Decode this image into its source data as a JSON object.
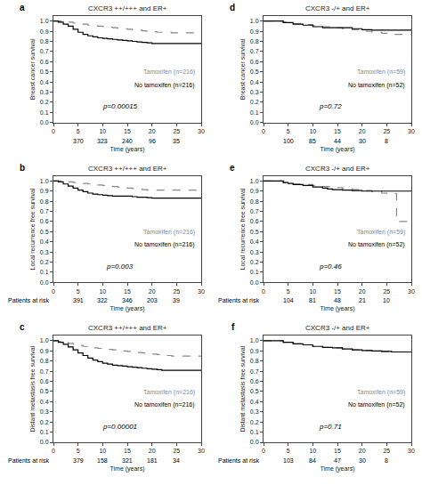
{
  "chart_data": [
    {
      "type": "step",
      "panel_label": "a",
      "title": "CXCR3 ++/+++ and ER+",
      "xlabel": "Time (years)",
      "ylabel": "Breast cancer survival",
      "annotations": [
        "p=0.00015"
      ],
      "series": [
        {
          "name": "Tamoxifen (n=216)",
          "color": "#888888",
          "line_style": "dashed",
          "x": [
            0,
            1,
            2,
            3,
            4,
            5,
            6,
            7,
            8,
            9,
            10,
            11,
            12,
            13,
            14,
            15,
            16,
            17,
            18,
            19,
            20,
            21,
            22,
            23,
            24,
            25,
            27,
            30
          ],
          "values": [
            1.0,
            1.0,
            0.99,
            0.99,
            0.98,
            0.97,
            0.97,
            0.96,
            0.955,
            0.95,
            0.945,
            0.94,
            0.935,
            0.93,
            0.925,
            0.92,
            0.915,
            0.91,
            0.905,
            0.9,
            0.895,
            0.89,
            0.89,
            0.89,
            0.885,
            0.885,
            0.885,
            0.885
          ]
        },
        {
          "name": "No tamoxifen (n=216)",
          "color": "#000000",
          "line_style": "solid",
          "x": [
            0,
            1,
            2,
            3,
            4,
            5,
            6,
            7,
            8,
            9,
            10,
            11,
            12,
            13,
            14,
            15,
            16,
            17,
            18,
            19,
            20,
            21,
            22,
            23,
            24,
            25,
            27,
            30
          ],
          "values": [
            1.0,
            0.99,
            0.97,
            0.95,
            0.92,
            0.89,
            0.87,
            0.855,
            0.845,
            0.835,
            0.83,
            0.825,
            0.82,
            0.815,
            0.81,
            0.805,
            0.8,
            0.795,
            0.79,
            0.785,
            0.78,
            0.78,
            0.78,
            0.78,
            0.78,
            0.78,
            0.78,
            0.78
          ]
        }
      ],
      "at_risk": {
        "x": [
          5,
          10,
          15,
          20,
          25
        ],
        "values": [
          370,
          323,
          240,
          96,
          35
        ]
      },
      "xlim": [
        0,
        30
      ],
      "xticks": [
        0,
        5,
        10,
        15,
        20,
        25,
        30
      ],
      "ylim": [
        0.0,
        1.05
      ],
      "yticks": [
        {
          "value": 0.0,
          "label": "0.0"
        },
        0.1,
        0.2,
        0.3,
        0.4,
        0.5,
        0.6,
        0.7,
        0.8,
        0.9,
        {
          "value": 1.0,
          "label": "1.0"
        }
      ],
      "grid": false
    },
    {
      "type": "step",
      "panel_label": "b",
      "title": "CXCR3 ++/+++ and ER+",
      "xlabel": "Time (years)",
      "ylabel": "Local recurrence free survival",
      "annotations": [
        "p=0.003"
      ],
      "series": [
        {
          "name": "Tamoxifen (n=216)",
          "color": "#888888",
          "line_style": "dashed",
          "x": [
            0,
            1,
            2,
            3,
            4,
            5,
            6,
            7,
            8,
            9,
            10,
            11,
            12,
            13,
            14,
            15,
            16,
            17,
            18,
            19,
            20,
            21,
            22,
            23,
            24,
            25,
            27,
            30
          ],
          "values": [
            1.0,
            1.0,
            0.995,
            0.99,
            0.985,
            0.98,
            0.975,
            0.97,
            0.965,
            0.96,
            0.955,
            0.95,
            0.945,
            0.94,
            0.935,
            0.93,
            0.925,
            0.92,
            0.915,
            0.91,
            0.91,
            0.91,
            0.91,
            0.91,
            0.91,
            0.91,
            0.91,
            0.91
          ]
        },
        {
          "name": "No tamoxifen (n=216)",
          "color": "#000000",
          "line_style": "solid",
          "x": [
            0,
            1,
            2,
            3,
            4,
            5,
            6,
            7,
            8,
            9,
            10,
            11,
            12,
            13,
            14,
            15,
            16,
            17,
            18,
            19,
            20,
            21,
            22,
            23,
            24,
            25,
            27,
            30
          ],
          "values": [
            1.0,
            0.99,
            0.97,
            0.95,
            0.93,
            0.91,
            0.895,
            0.88,
            0.87,
            0.865,
            0.86,
            0.855,
            0.85,
            0.85,
            0.85,
            0.85,
            0.845,
            0.84,
            0.84,
            0.835,
            0.83,
            0.83,
            0.83,
            0.83,
            0.83,
            0.83,
            0.83,
            0.83
          ]
        }
      ],
      "at_risk": {
        "label": "Patients at risk",
        "x": [
          5,
          10,
          15,
          20,
          25
        ],
        "values": [
          391,
          322,
          346,
          203,
          39
        ]
      },
      "xlim": [
        0,
        30
      ],
      "xticks": [
        0,
        5,
        10,
        15,
        20,
        25,
        30
      ],
      "ylim": [
        0.0,
        1.05
      ],
      "yticks": [
        {
          "value": 0.0,
          "label": "0.0"
        },
        0.1,
        0.2,
        0.3,
        0.4,
        0.5,
        0.6,
        0.7,
        0.8,
        0.9,
        {
          "value": 1.0,
          "label": "1.0"
        }
      ],
      "grid": false
    },
    {
      "type": "step",
      "panel_label": "c",
      "title": "CXCR3 ++/+++ and ER+",
      "xlabel": "Time (years)",
      "ylabel": "Distant metastasis free survival",
      "annotations": [
        "p=0.00001"
      ],
      "series": [
        {
          "name": "Tamoxifen (n=216)",
          "color": "#888888",
          "line_style": "dashed",
          "x": [
            0,
            1,
            2,
            3,
            4,
            5,
            6,
            7,
            8,
            9,
            10,
            11,
            12,
            13,
            14,
            15,
            16,
            17,
            18,
            19,
            20,
            21,
            22,
            23,
            24,
            25,
            27,
            30
          ],
          "values": [
            1.0,
            0.995,
            0.985,
            0.975,
            0.965,
            0.955,
            0.945,
            0.935,
            0.93,
            0.925,
            0.92,
            0.915,
            0.91,
            0.905,
            0.9,
            0.895,
            0.89,
            0.885,
            0.88,
            0.875,
            0.87,
            0.865,
            0.86,
            0.855,
            0.85,
            0.85,
            0.85,
            0.85
          ]
        },
        {
          "name": "No tamoxifen (n=216)",
          "color": "#000000",
          "line_style": "solid",
          "x": [
            0,
            1,
            2,
            3,
            4,
            5,
            6,
            7,
            8,
            9,
            10,
            11,
            12,
            13,
            14,
            15,
            16,
            17,
            18,
            19,
            20,
            21,
            22,
            23,
            24,
            25,
            27,
            30
          ],
          "values": [
            1.0,
            0.985,
            0.965,
            0.94,
            0.91,
            0.88,
            0.855,
            0.83,
            0.81,
            0.795,
            0.78,
            0.77,
            0.76,
            0.755,
            0.75,
            0.745,
            0.74,
            0.735,
            0.73,
            0.725,
            0.72,
            0.715,
            0.71,
            0.71,
            0.71,
            0.71,
            0.71,
            0.71
          ]
        }
      ],
      "at_risk": {
        "label": "Patients at risk",
        "x": [
          5,
          10,
          15,
          20,
          25
        ],
        "values": [
          379,
          158,
          321,
          181,
          34
        ]
      },
      "xlim": [
        0,
        30
      ],
      "xticks": [
        0,
        5,
        10,
        15,
        20,
        25,
        30
      ],
      "ylim": [
        0.0,
        1.05
      ],
      "yticks": [
        {
          "value": 0.0,
          "label": "0.0"
        },
        0.1,
        0.2,
        0.3,
        0.4,
        0.5,
        0.6,
        0.7,
        0.8,
        0.9,
        {
          "value": 1.0,
          "label": "1.0"
        }
      ],
      "grid": false
    },
    {
      "type": "step",
      "panel_label": "d",
      "title": "CXCR3 -/+ and ER+",
      "xlabel": "Time (years)",
      "ylabel": "Breast cancer survival",
      "annotations": [
        "p=0.72"
      ],
      "series": [
        {
          "name": "Tamoxifen (n=59)",
          "color": "#888888",
          "line_style": "dashed",
          "x": [
            0,
            2,
            4,
            6,
            8,
            10,
            12,
            14,
            16,
            18,
            20,
            22,
            24,
            26,
            27,
            30
          ],
          "values": [
            1.0,
            1.0,
            0.99,
            0.975,
            0.965,
            0.955,
            0.945,
            0.935,
            0.925,
            0.915,
            0.9,
            0.89,
            0.88,
            0.87,
            0.87,
            0.87
          ]
        },
        {
          "name": "No tamoxifen (n=52)",
          "color": "#000000",
          "line_style": "solid",
          "x": [
            0,
            2,
            4,
            6,
            8,
            10,
            12,
            14,
            16,
            18,
            20,
            22,
            24,
            26,
            27,
            30
          ],
          "values": [
            1.0,
            1.0,
            0.985,
            0.97,
            0.96,
            0.945,
            0.935,
            0.935,
            0.935,
            0.925,
            0.915,
            0.91,
            0.91,
            0.91,
            0.91,
            0.91
          ]
        }
      ],
      "at_risk": {
        "x": [
          5,
          10,
          15,
          20,
          25
        ],
        "values": [
          100,
          85,
          44,
          30,
          8
        ]
      },
      "xlim": [
        0,
        30
      ],
      "xticks": [
        0,
        5,
        10,
        15,
        20,
        25,
        30
      ],
      "ylim": [
        0.0,
        1.05
      ],
      "yticks": [
        {
          "value": 0.0,
          "label": "0.0"
        },
        0.1,
        0.2,
        0.3,
        0.4,
        0.5,
        0.6,
        0.7,
        0.8,
        0.9,
        {
          "value": 1.0,
          "label": "1.0"
        }
      ],
      "grid": false
    },
    {
      "type": "step",
      "panel_label": "e",
      "title": "CXCR3 -/+ and ER+",
      "xlabel": "Time (years)",
      "ylabel": "Local recurrence free survival",
      "annotations": [
        "p=0.46"
      ],
      "series": [
        {
          "name": "Tamoxifen (n=59)",
          "color": "#888888",
          "line_style": "dashed",
          "x": [
            0,
            2,
            4,
            5,
            6,
            8,
            10,
            12,
            14,
            16,
            18,
            20,
            22,
            24,
            25,
            26,
            27,
            30
          ],
          "values": [
            1.0,
            1.0,
            0.985,
            0.975,
            0.97,
            0.965,
            0.955,
            0.945,
            0.935,
            0.925,
            0.915,
            0.905,
            0.895,
            0.88,
            0.875,
            0.875,
            0.6,
            0.6
          ]
        },
        {
          "name": "No tamoxifen (n=52)",
          "color": "#000000",
          "line_style": "solid",
          "x": [
            0,
            2,
            4,
            5,
            6,
            8,
            10,
            12,
            13,
            14,
            16,
            18,
            20,
            22,
            24,
            26,
            27,
            30
          ],
          "values": [
            1.0,
            1.0,
            0.985,
            0.975,
            0.965,
            0.955,
            0.94,
            0.93,
            0.92,
            0.915,
            0.91,
            0.905,
            0.9,
            0.9,
            0.9,
            0.9,
            0.9,
            0.9
          ]
        }
      ],
      "at_risk": {
        "label": "Patients at risk",
        "x": [
          5,
          10,
          15,
          20,
          25
        ],
        "values": [
          104,
          81,
          48,
          21,
          10
        ]
      },
      "xlim": [
        0,
        30
      ],
      "xticks": [
        0,
        5,
        10,
        15,
        20,
        25,
        30
      ],
      "ylim": [
        0.0,
        1.05
      ],
      "yticks": [
        {
          "value": 0.0,
          "label": "0.0"
        },
        0.1,
        0.2,
        0.3,
        0.4,
        0.5,
        0.6,
        0.7,
        0.8,
        0.9,
        {
          "value": 1.0,
          "label": "1.0"
        }
      ],
      "grid": false
    },
    {
      "type": "step",
      "panel_label": "f",
      "title": "CXCR3 -/+ and ER+",
      "xlabel": "Time (years)",
      "ylabel": "Distant metastasis free survival",
      "annotations": [
        "p=0.71"
      ],
      "series": [
        {
          "name": "Tamoxifen (n=59)",
          "color": "#888888",
          "line_style": "dashed",
          "x": [
            0,
            2,
            4,
            6,
            8,
            10,
            12,
            14,
            16,
            18,
            20,
            22,
            24,
            26,
            27,
            30
          ],
          "values": [
            1.0,
            1.0,
            0.985,
            0.97,
            0.96,
            0.945,
            0.935,
            0.93,
            0.92,
            0.91,
            0.905,
            0.9,
            0.895,
            0.89,
            0.89,
            0.89
          ]
        },
        {
          "name": "No tamoxifen (n=52)",
          "color": "#000000",
          "line_style": "solid",
          "x": [
            0,
            2,
            4,
            6,
            8,
            10,
            12,
            14,
            16,
            18,
            20,
            22,
            24,
            26,
            27,
            30
          ],
          "values": [
            1.0,
            1.0,
            0.985,
            0.97,
            0.96,
            0.945,
            0.935,
            0.93,
            0.92,
            0.91,
            0.905,
            0.9,
            0.895,
            0.89,
            0.89,
            0.89
          ]
        }
      ],
      "at_risk": {
        "label": "Patients at risk",
        "x": [
          5,
          10,
          15,
          20,
          25
        ],
        "values": [
          103,
          84,
          47,
          30,
          8
        ]
      },
      "xlim": [
        0,
        30
      ],
      "xticks": [
        0,
        5,
        10,
        15,
        20,
        25,
        30
      ],
      "ylim": [
        0.0,
        1.05
      ],
      "yticks": [
        {
          "value": 0.0,
          "label": "0.0"
        },
        0.1,
        0.2,
        0.3,
        0.4,
        0.5,
        0.6,
        0.7,
        0.8,
        0.9,
        {
          "value": 1.0,
          "label": "1.0"
        }
      ],
      "grid": false
    }
  ]
}
